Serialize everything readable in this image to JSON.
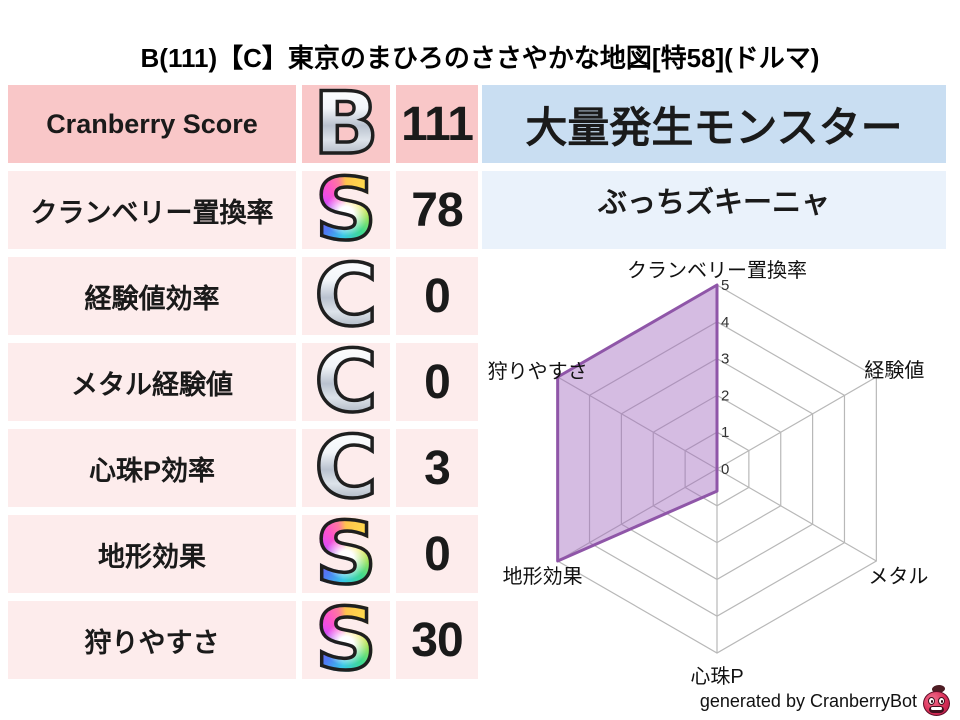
{
  "title": "B(111)【C】東京のまひろのささやかな地図[特58](ドルマ)",
  "colors": {
    "row_strong_pink": "#f9c7c8",
    "row_pale_pink": "#fdecec",
    "header_blue": "#c9def2",
    "panel_pale_blue": "#eaf2fb",
    "text_dark": "#1a1a1a"
  },
  "stats_table": {
    "rows": [
      {
        "label": "Cranberry Score",
        "grade": "B",
        "grade_style": "silver",
        "value": "111"
      },
      {
        "label": "クランベリー置換率",
        "grade": "S",
        "grade_style": "rainbow",
        "value": "78"
      },
      {
        "label": "経験値効率",
        "grade": "C",
        "grade_style": "silver",
        "value": "0"
      },
      {
        "label": "メタル経験値",
        "grade": "C",
        "grade_style": "silver",
        "value": "0"
      },
      {
        "label": "心珠P効率",
        "grade": "C",
        "grade_style": "silver",
        "value": "3"
      },
      {
        "label": "地形効果",
        "grade": "S",
        "grade_style": "rainbow",
        "value": "0"
      },
      {
        "label": "狩りやすさ",
        "grade": "S",
        "grade_style": "rainbow",
        "value": "30"
      }
    ]
  },
  "monster_panel": {
    "header": "大量発生モンスター",
    "name": "ぶっちズキーニャ"
  },
  "chart_data": {
    "type": "radar",
    "categories": [
      "クランベリー置換率",
      "経験値",
      "メタル",
      "心珠P",
      "地形効果",
      "狩りやすさ"
    ],
    "values": [
      5,
      0,
      0,
      0.6,
      5,
      5
    ],
    "ticks": [
      0,
      1,
      2,
      3,
      4,
      5
    ],
    "rmax": 5,
    "grid": true,
    "legend": "none",
    "grid_color": "#b8b8b8",
    "fill_color": "rgba(162,107,191,0.45)",
    "stroke_color": "#8f56a8",
    "tick_color": "#333333",
    "label_color": "#111111"
  },
  "footer": {
    "credit": "generated by CranberryBot",
    "icon": "cranberry-bot-icon"
  }
}
